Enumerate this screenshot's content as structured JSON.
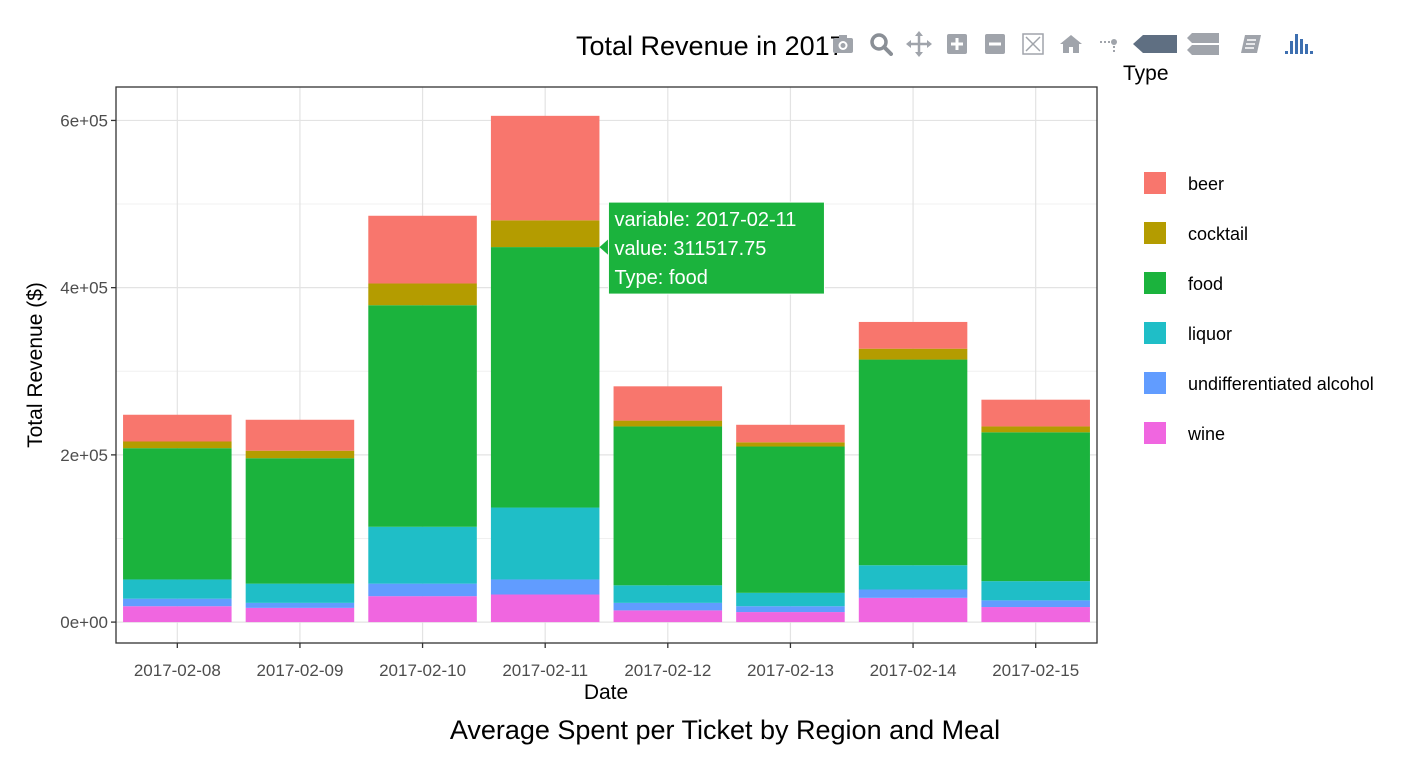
{
  "chart_data": {
    "type": "bar",
    "stacked": true,
    "title": "Total Revenue in 2017",
    "subtitle": "Average Spent per Ticket by Region and Meal",
    "xlabel": "Date",
    "ylabel": "Total Revenue ($)",
    "ylim": [
      -25000,
      640000
    ],
    "yticks": [
      0,
      200000,
      400000,
      600000
    ],
    "ytick_labels": [
      "0e+00",
      "2e+05",
      "4e+05",
      "6e+05"
    ],
    "grid": true,
    "legend_title": "Type",
    "legend_position": "right",
    "categories": [
      "2017-02-08",
      "2017-02-09",
      "2017-02-10",
      "2017-02-11",
      "2017-02-12",
      "2017-02-13",
      "2017-02-14",
      "2017-02-15"
    ],
    "series": [
      {
        "name": "wine",
        "color": "#F066E0",
        "values": [
          19000,
          17000,
          31000,
          33000,
          14000,
          12000,
          29000,
          18000
        ]
      },
      {
        "name": "undifferentiated alcohol",
        "color": "#619CFF",
        "values": [
          9000,
          6000,
          15000,
          18000,
          9000,
          7000,
          10000,
          8000
        ]
      },
      {
        "name": "liquor",
        "color": "#1FBEC7",
        "values": [
          23000,
          23000,
          68000,
          86000,
          21000,
          16000,
          29000,
          23000
        ]
      },
      {
        "name": "food",
        "color": "#1BB33D",
        "values": [
          157000,
          150000,
          265000,
          311517.75,
          190000,
          175000,
          246000,
          178000
        ]
      },
      {
        "name": "cocktail",
        "color": "#B49C00",
        "values": [
          8000,
          9000,
          26000,
          32000,
          7000,
          5000,
          13000,
          7000
        ]
      },
      {
        "name": "beer",
        "color": "#F8766D",
        "values": [
          32000,
          37000,
          81000,
          125000,
          41000,
          21000,
          32000,
          32000
        ]
      }
    ],
    "legend_order": [
      "beer",
      "cocktail",
      "food",
      "liquor",
      "undifferentiated alcohol",
      "wine"
    ],
    "tooltip": {
      "category": "2017-02-11",
      "series": "food",
      "lines": [
        "variable: 2017-02-11",
        "value: 311517.75",
        "Type: food"
      ]
    }
  },
  "modebar": {
    "buttons": [
      "camera-icon",
      "zoom-icon",
      "pan-icon",
      "zoom-in-icon",
      "zoom-out-icon",
      "autoscale-icon",
      "reset-axes-icon",
      "spike-lines-icon",
      "hover-closest-icon",
      "hover-compare-icon",
      "edit-chart-icon",
      "plotly-logo-icon"
    ],
    "color": "#a0a4ab",
    "logo_color": "#3D6FB0"
  }
}
